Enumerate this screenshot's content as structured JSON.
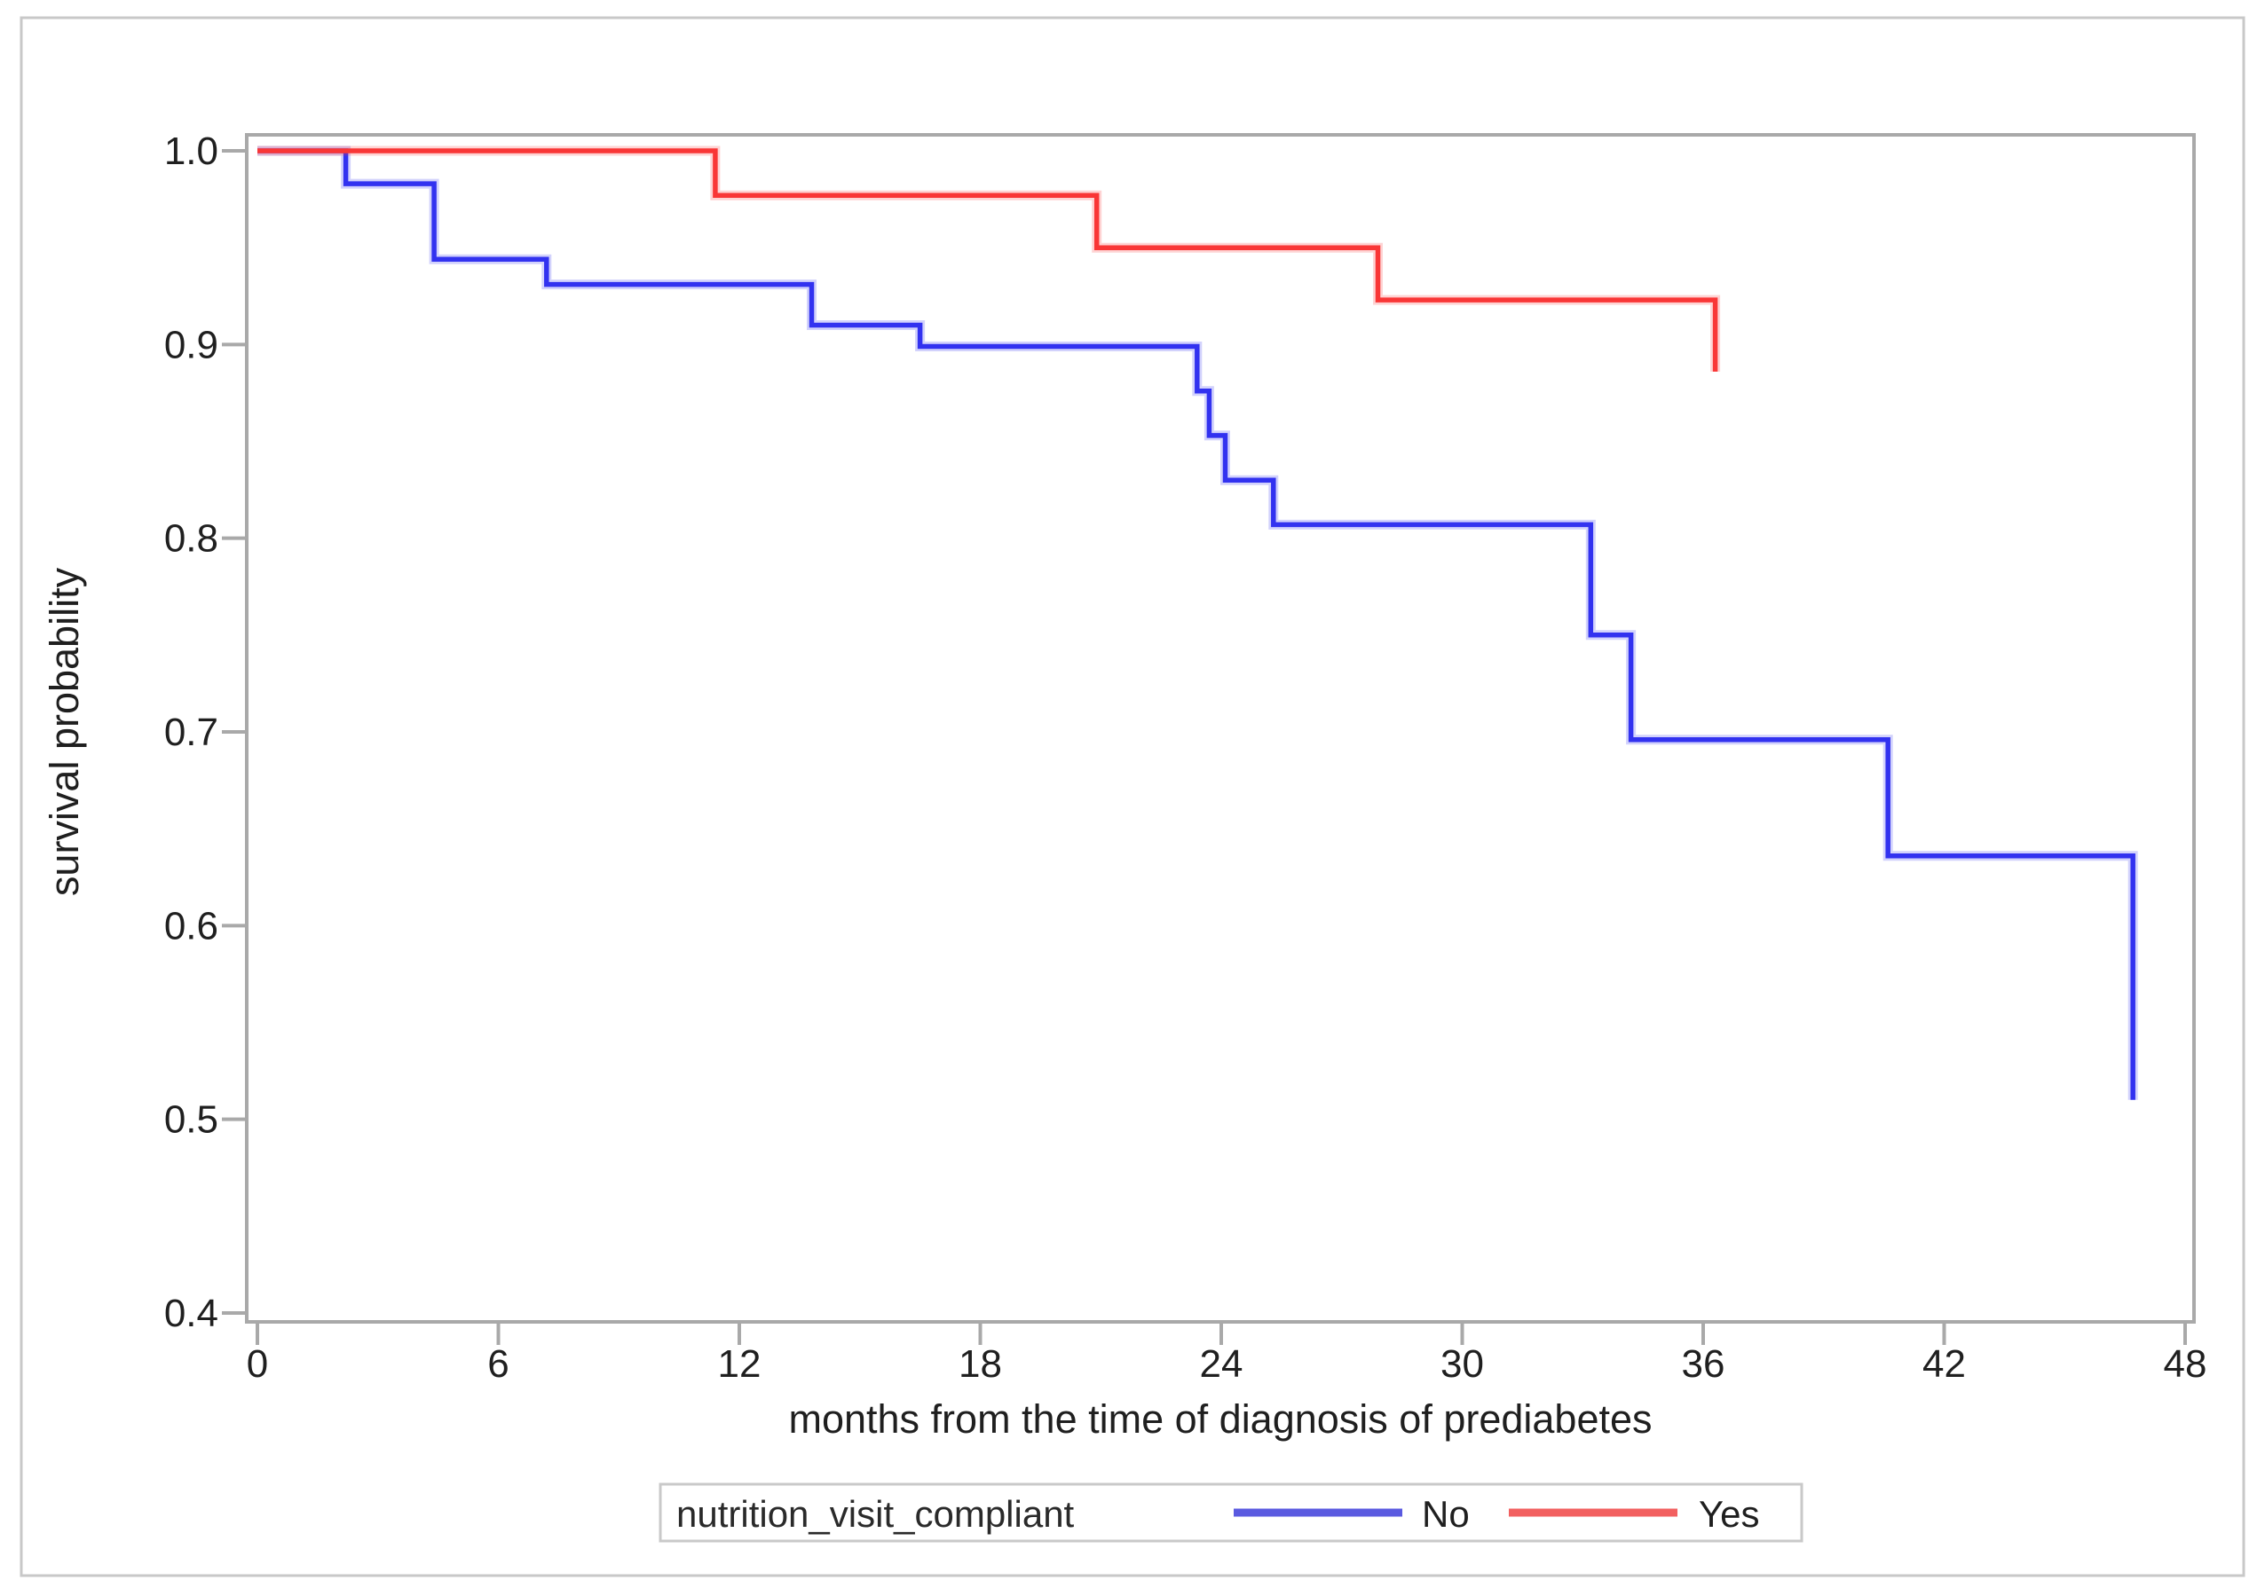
{
  "figure": {
    "background": "#ffffff",
    "outer_border_color": "#c8c8c8"
  },
  "axis": {
    "frame_color": "#a9a9a9",
    "tick_color": "#a9a9a9",
    "label_color": "#1f1f1f"
  },
  "chart_data": {
    "type": "line",
    "subtype": "kaplan-meier-step",
    "title": "",
    "xlabel": "months from the time of diagnosis of prediabetes",
    "ylabel": "survival probability",
    "xlim": [
      0,
      48
    ],
    "ylim": [
      0.4,
      1.0
    ],
    "x_ticks": [
      0,
      6,
      12,
      18,
      24,
      30,
      36,
      42,
      48
    ],
    "y_ticks": [
      1.0,
      0.9,
      0.8,
      0.7,
      0.6,
      0.5,
      0.4
    ],
    "y_tick_labels": [
      "1.0",
      "0.9",
      "0.8",
      "0.7",
      "0.6",
      "0.5",
      "0.4"
    ],
    "grid": false,
    "legend_position": "bottom",
    "series": [
      {
        "name": "No",
        "color": "#3232f0",
        "steps": [
          [
            0,
            1.0
          ],
          [
            2.2,
            0.983
          ],
          [
            4.4,
            0.944
          ],
          [
            7.2,
            0.931
          ],
          [
            13.8,
            0.91
          ],
          [
            16.5,
            0.899
          ],
          [
            23.4,
            0.876
          ],
          [
            23.7,
            0.853
          ],
          [
            24.1,
            0.83
          ],
          [
            25.3,
            0.807
          ],
          [
            33.2,
            0.75
          ],
          [
            34.2,
            0.696
          ],
          [
            40.6,
            0.636
          ],
          [
            46.7,
            0.51
          ]
        ]
      },
      {
        "name": "Yes",
        "color": "#f93636",
        "steps": [
          [
            0,
            1.0
          ],
          [
            11.4,
            0.977
          ],
          [
            20.9,
            0.95
          ],
          [
            27.9,
            0.923
          ],
          [
            36.3,
            0.886
          ]
        ]
      }
    ]
  },
  "legend": {
    "title": "nutrition_visit_compliant",
    "border_color": "#c9c9c9",
    "items": [
      {
        "label": "No",
        "swatch_color": "#5a5ae0"
      },
      {
        "label": "Yes",
        "swatch_color": "#f26060"
      }
    ]
  }
}
